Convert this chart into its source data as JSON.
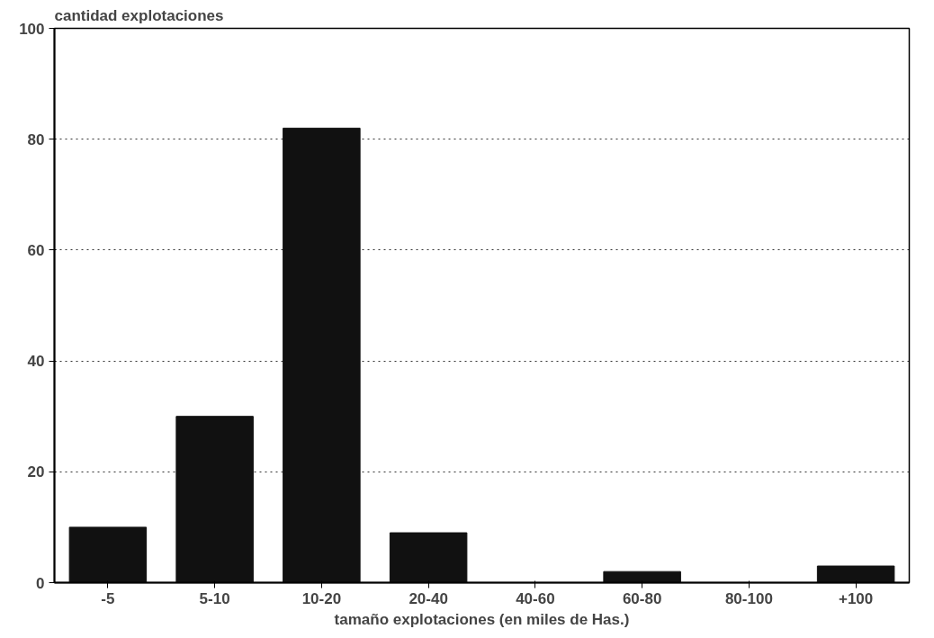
{
  "chart_data": {
    "type": "bar",
    "title": "cantidad explotaciones",
    "xlabel": "tamaño explotaciones (en miles de Has.)",
    "categories": [
      "-5",
      "5-10",
      "10-20",
      "20-40",
      "40-60",
      "60-80",
      "80-100",
      "+100"
    ],
    "values": [
      10,
      30,
      82,
      9,
      0,
      2,
      0,
      3
    ],
    "color": "#111111",
    "ylim": [
      0,
      100
    ],
    "yticks": [
      0,
      20,
      40,
      60,
      80,
      100
    ],
    "grid": "y",
    "line_style": "dotted"
  }
}
